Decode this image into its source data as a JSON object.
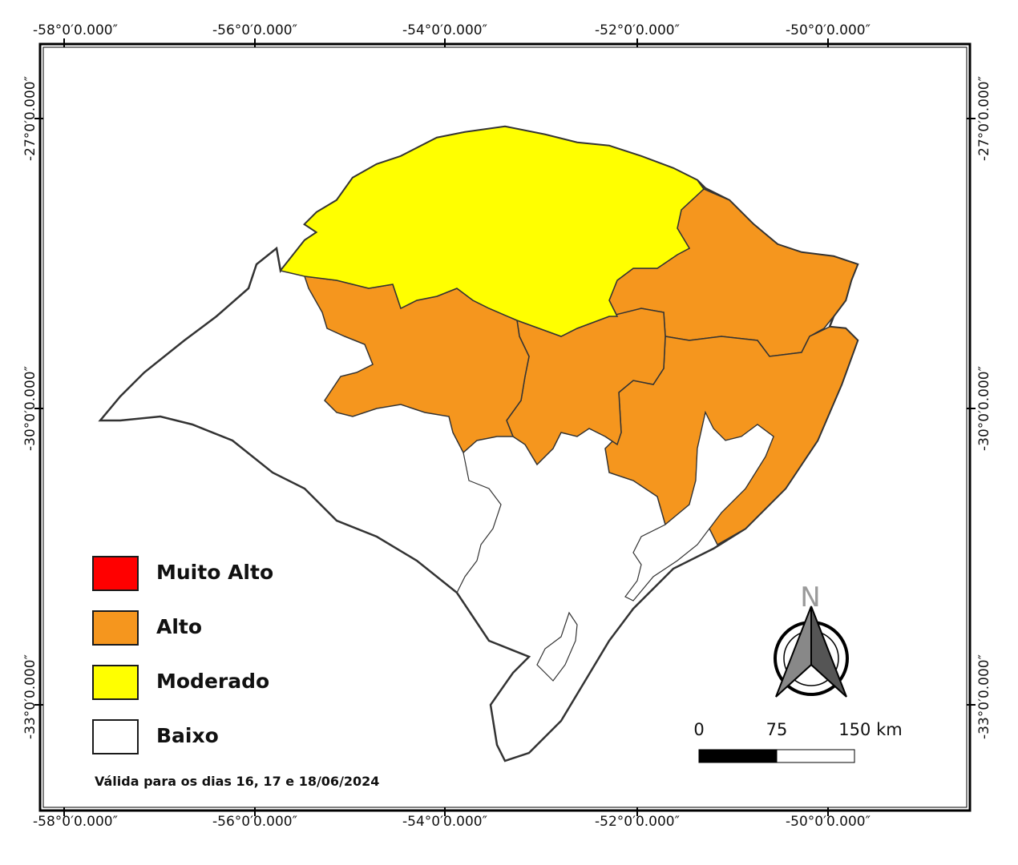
{
  "map": {
    "longitude_labels": [
      "-58°0′0.000″",
      "-56°0′0.000″",
      "-54°0′0.000″",
      "-52°0′0.000″",
      "-50°0′0.000″"
    ],
    "latitude_labels": [
      "-27°0′0.000″",
      "-30°0′0.000″",
      "-33°0′0.000″"
    ]
  },
  "legend": {
    "items": [
      {
        "label": "Muito Alto",
        "color": "#ff0000"
      },
      {
        "label": "Alto",
        "color": "#f5961e"
      },
      {
        "label": "Moderado",
        "color": "#ffff00"
      },
      {
        "label": "Baixo",
        "color": "#ffffff"
      }
    ]
  },
  "validity_note": "Válida para os dias 16, 17 e 18/06/2024",
  "scale_bar": {
    "labels": [
      "0",
      "75",
      "150 km"
    ]
  },
  "north_arrow": {
    "letter": "N",
    "icon": "north-arrow-icon"
  },
  "colors": {
    "outline": "#333333",
    "frame": "#000000"
  }
}
